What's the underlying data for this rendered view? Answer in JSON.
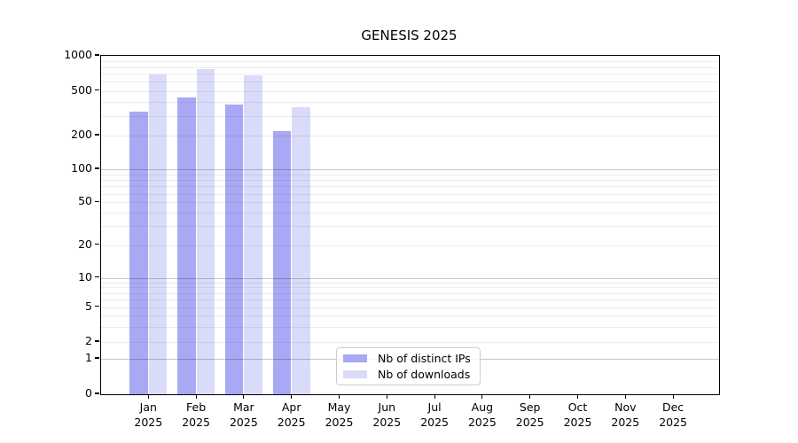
{
  "title": "GENESIS 2025",
  "chart_data": {
    "type": "bar",
    "title": "GENESIS 2025",
    "scale": "symlog",
    "grid": true,
    "background": "#ffffff",
    "categories": [
      "Jan",
      "Feb",
      "Mar",
      "Apr",
      "May",
      "Jun",
      "Jul",
      "Aug",
      "Sep",
      "Oct",
      "Nov",
      "Dec"
    ],
    "year": "2025",
    "series": [
      {
        "name": "Nb of distinct IPs",
        "color": "#a8a8f4",
        "values": [
          325,
          437,
          380,
          220,
          null,
          null,
          null,
          null,
          null,
          null,
          null,
          null
        ]
      },
      {
        "name": "Nb of downloads",
        "color": "#dadaf9",
        "values": [
          690,
          765,
          685,
          360,
          null,
          null,
          null,
          null,
          null,
          null,
          null,
          null
        ]
      }
    ],
    "yticks": [
      1000,
      500,
      200,
      100,
      50,
      20,
      10,
      5,
      2,
      1,
      0
    ],
    "ylim": [
      0,
      1000
    ],
    "legend_position": "lower-center",
    "legend_labels": [
      "Nb of distinct IPs",
      "Nb of downloads"
    ]
  }
}
